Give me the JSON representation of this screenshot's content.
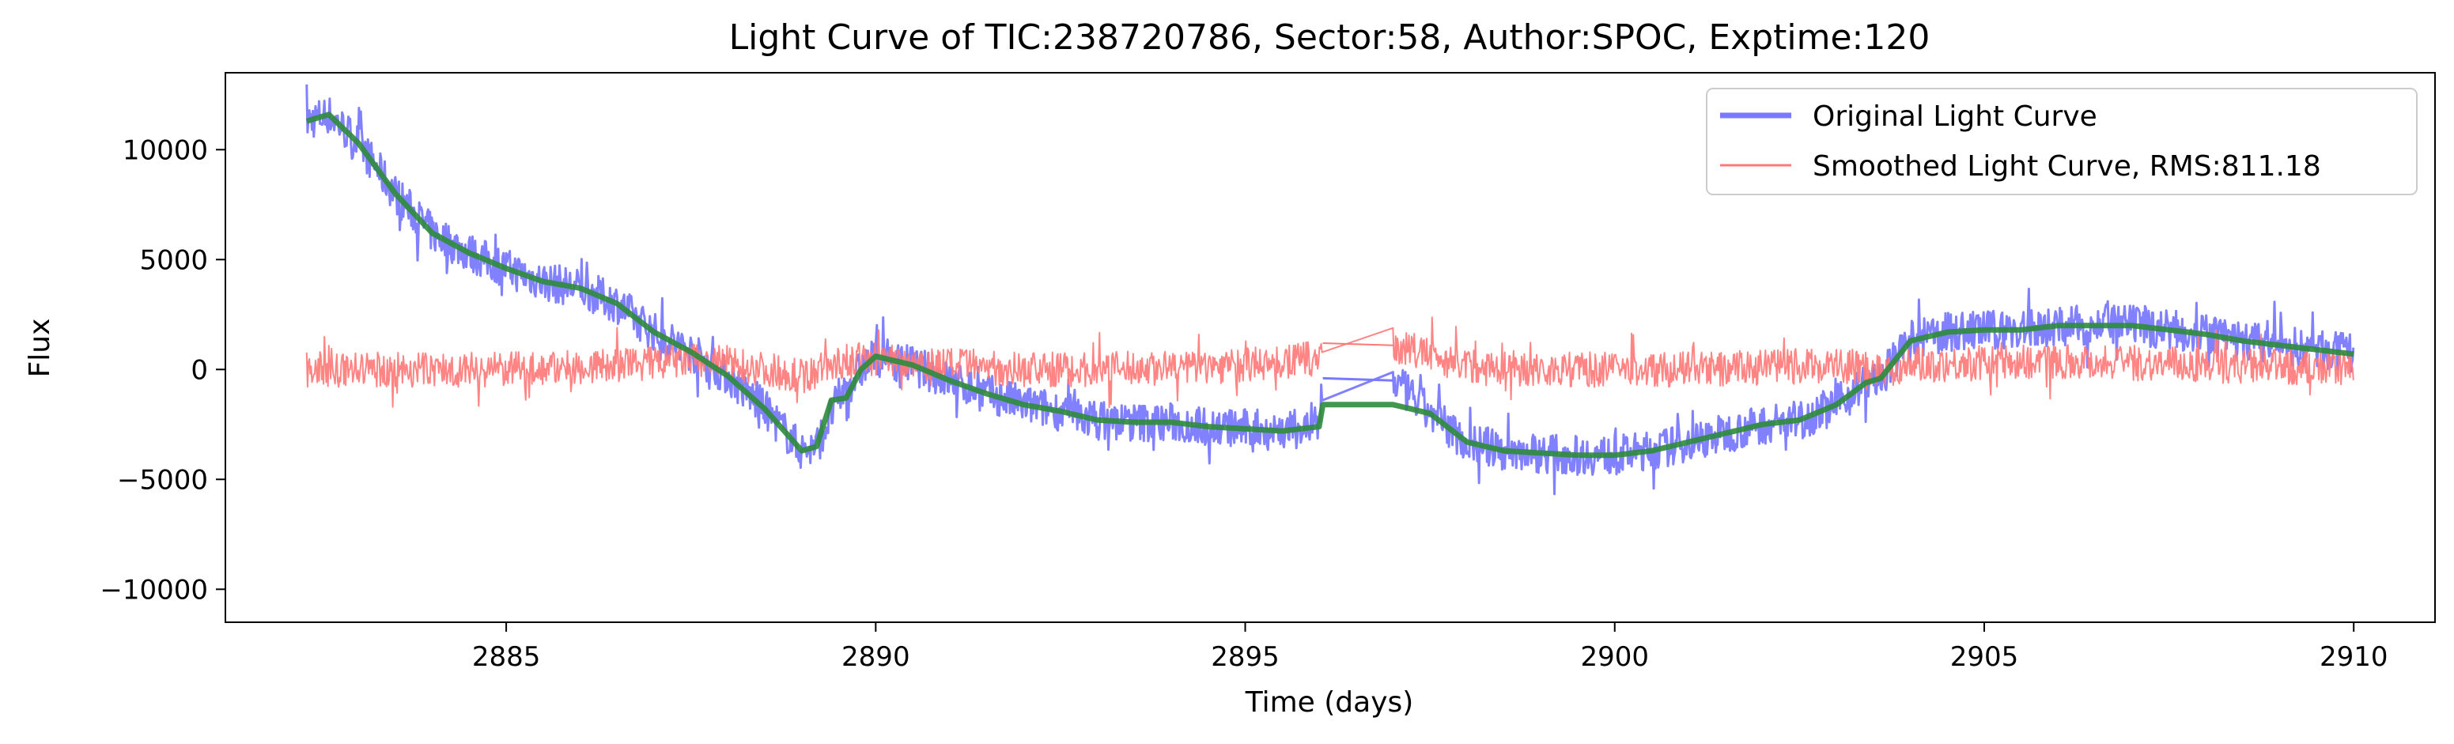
{
  "chart_data": {
    "type": "line",
    "title": "Light Curve of TIC:238720786, Sector:58, Author:SPOC, Exptime:120",
    "xlabel": "Time (days)",
    "ylabel": "Flux",
    "xlim": [
      2881.2,
      2911.1
    ],
    "ylim": [
      -11500,
      13500
    ],
    "xticks": [
      2885,
      2890,
      2895,
      2900,
      2905,
      2910
    ],
    "xtick_labels": [
      "2885",
      "2890",
      "2895",
      "2900",
      "2905",
      "2910"
    ],
    "yticks": [
      10000,
      5000,
      0,
      -5000,
      -10000
    ],
    "ytick_labels": [
      "10000",
      "5000",
      "0",
      "−5000",
      "−10000"
    ],
    "grid": false,
    "legend_position": "top-right",
    "colors": {
      "original": "#7a7aff",
      "smoothed": "#ff7878",
      "trend": "#2e8b3a"
    },
    "series": [
      {
        "name": "Original Light Curve",
        "kind": "raw",
        "x": [
          2882.3,
          2882.6,
          2883.0,
          2883.5,
          2884.0,
          2884.5,
          2885.0,
          2885.5,
          2886.0,
          2886.5,
          2887.0,
          2887.5,
          2888.0,
          2888.5,
          2889.0,
          2889.2,
          2889.5,
          2889.8,
          2890.0,
          2890.5,
          2891.0,
          2891.5,
          2892.0,
          2892.5,
          2893.0,
          2893.5,
          2894.0,
          2894.5,
          2895.0,
          2895.5,
          2896.0,
          2896.05,
          2897.0,
          2897.5,
          2898.0,
          2898.5,
          2899.0,
          2899.5,
          2900.0,
          2900.5,
          2901.0,
          2901.5,
          2902.0,
          2902.5,
          2903.0,
          2903.4,
          2903.6,
          2904.0,
          2904.5,
          2905.0,
          2905.5,
          2906.0,
          2906.5,
          2907.0,
          2907.5,
          2908.0,
          2908.5,
          2909.0,
          2909.5,
          2910.0
        ],
        "y": [
          11300,
          11600,
          10300,
          8000,
          6200,
          5300,
          4600,
          4000,
          3700,
          3000,
          1700,
          800,
          -300,
          -1800,
          -3700,
          -3500,
          -1300,
          0,
          600,
          200,
          -500,
          -1100,
          -1600,
          -1900,
          -2300,
          -2400,
          -2400,
          -2600,
          -2700,
          -2800,
          -2600,
          -400,
          -500,
          -2000,
          -3300,
          -3700,
          -3800,
          -3900,
          -3900,
          -3700,
          -3300,
          -2900,
          -2500,
          -2300,
          -1600,
          -600,
          -400,
          1300,
          1700,
          1800,
          1800,
          2000,
          2000,
          2000,
          1800,
          1600,
          1300,
          1100,
          900,
          700
        ],
        "noise": 900
      },
      {
        "name": "Smoothed Light Curve, RMS:811.18",
        "kind": "residual",
        "x": [
          2882.3,
          2883.0,
          2884.0,
          2885.0,
          2886.0,
          2887.0,
          2887.5,
          2888.0,
          2888.5,
          2889.0,
          2889.5,
          2890.0,
          2891.0,
          2892.0,
          2893.0,
          2894.0,
          2895.0,
          2896.0,
          2896.05,
          2897.0,
          2898.0,
          2899.0,
          2900.0,
          2901.0,
          2902.0,
          2903.0,
          2903.6,
          2904.0,
          2905.0,
          2906.0,
          2907.0,
          2908.0,
          2909.0,
          2910.0
        ],
        "y": [
          0,
          0,
          0,
          0,
          100,
          300,
          400,
          300,
          0,
          -300,
          300,
          500,
          200,
          0,
          0,
          100,
          200,
          500,
          1200,
          1100,
          200,
          0,
          0,
          0,
          100,
          200,
          0,
          200,
          300,
          400,
          300,
          200,
          100,
          0
        ],
        "noise": 800
      },
      {
        "name": "",
        "kind": "trend",
        "x": [
          2882.3,
          2882.6,
          2883.0,
          2883.5,
          2884.0,
          2884.5,
          2885.0,
          2885.5,
          2886.0,
          2886.5,
          2887.0,
          2887.5,
          2888.0,
          2888.5,
          2889.0,
          2889.2,
          2889.4,
          2889.6,
          2889.8,
          2890.0,
          2890.5,
          2891.0,
          2891.5,
          2892.0,
          2892.5,
          2893.0,
          2893.5,
          2894.0,
          2894.5,
          2895.0,
          2895.5,
          2896.0,
          2896.05,
          2897.0,
          2897.5,
          2898.0,
          2898.5,
          2899.0,
          2899.5,
          2900.0,
          2900.5,
          2901.0,
          2901.5,
          2902.0,
          2902.5,
          2903.0,
          2903.4,
          2903.6,
          2904.0,
          2904.5,
          2905.0,
          2905.5,
          2906.0,
          2906.5,
          2907.0,
          2907.5,
          2908.0,
          2908.5,
          2909.0,
          2909.5,
          2910.0
        ],
        "y": [
          11300,
          11600,
          10300,
          8000,
          6200,
          5300,
          4600,
          4000,
          3700,
          3000,
          1700,
          800,
          -300,
          -1800,
          -3700,
          -3500,
          -1400,
          -1300,
          0,
          600,
          200,
          -500,
          -1100,
          -1600,
          -1900,
          -2300,
          -2400,
          -2400,
          -2600,
          -2700,
          -2800,
          -2600,
          -1600,
          -1600,
          -2000,
          -3300,
          -3700,
          -3800,
          -3900,
          -3900,
          -3700,
          -3300,
          -2900,
          -2500,
          -2300,
          -1600,
          -600,
          -400,
          1300,
          1700,
          1800,
          1800,
          2000,
          2000,
          2000,
          1800,
          1600,
          1300,
          1100,
          900,
          700
        ],
        "noise": 0
      }
    ],
    "legend": [
      {
        "label": "Original Light Curve",
        "color": "#7a7aff"
      },
      {
        "label": "Smoothed Light Curve, RMS:811.18",
        "color": "#ff7878"
      }
    ]
  }
}
